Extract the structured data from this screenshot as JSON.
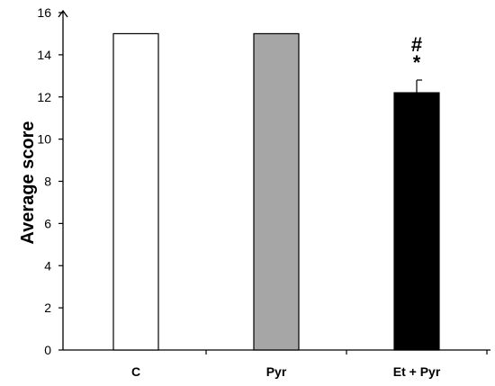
{
  "chart_data": {
    "type": "bar",
    "categories": [
      "C",
      "Pyr",
      "Et + Pyr"
    ],
    "values": [
      15,
      15,
      12.2
    ],
    "error": [
      0,
      0,
      0.6
    ],
    "colors": [
      "#ffffff",
      "#a6a6a6",
      "#000000"
    ],
    "annotations": [
      {
        "category": "Et + Pyr",
        "lines": [
          "#",
          "*"
        ]
      }
    ],
    "ylabel": "Average score",
    "xlabel": "",
    "ylim": [
      0,
      16
    ],
    "yticks": [
      "0",
      "2",
      "4",
      "6",
      "8",
      "10",
      "12",
      "14",
      "16"
    ],
    "grid": false
  }
}
